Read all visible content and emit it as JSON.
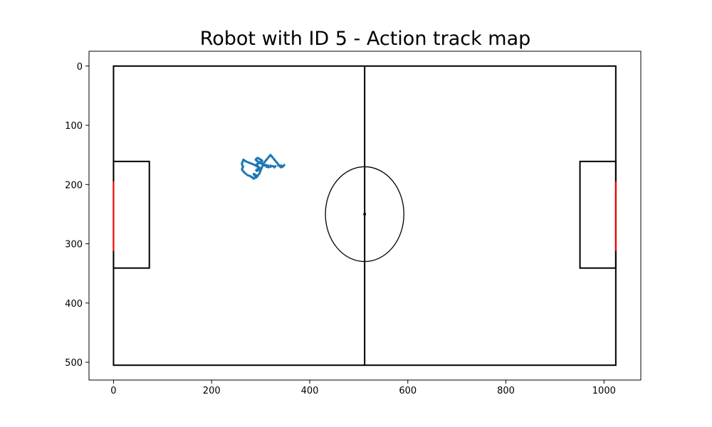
{
  "chart_data": {
    "type": "scatter",
    "title": "Robot with ID 5 - Action track map",
    "xlabel": "",
    "ylabel": "",
    "xlim": [
      -50,
      1075
    ],
    "ylim": [
      530,
      -25
    ],
    "y_inverted": true,
    "grid": false,
    "x_ticks": [
      0,
      200,
      400,
      600,
      800,
      1000
    ],
    "y_ticks": [
      0,
      100,
      200,
      300,
      400,
      500
    ],
    "colors": {
      "track": "#1f77b4",
      "field_lines": "#000000",
      "goal": "#ff0000"
    },
    "field": {
      "outline": [
        0,
        0,
        1024,
        505
      ],
      "center_line_x": 512,
      "center_circle": {
        "cx": 512,
        "cy": 250,
        "rx": 80,
        "ry": 80
      },
      "center_spot": [
        512,
        250
      ],
      "left_penalty_box": [
        0,
        161,
        73,
        341
      ],
      "right_penalty_box": [
        951,
        161,
        1024,
        341
      ],
      "left_goal": [
        0,
        195,
        0,
        312
      ],
      "right_goal": [
        1024,
        195,
        1024,
        312
      ]
    },
    "series": [
      {
        "x": [
          348,
          342,
          336,
          330,
          325,
          320,
          315,
          311,
          307,
          303,
          300,
          298,
          296,
          294,
          292,
          291,
          290,
          291,
          292,
          294,
          296,
          298,
          300,
          302,
          303,
          302,
          300,
          298,
          296,
          294,
          292,
          291,
          292,
          294,
          295,
          296,
          297,
          296,
          294,
          292,
          291,
          292,
          294,
          296,
          298,
          300,
          298,
          296,
          294,
          292,
          290,
          288,
          285,
          282,
          279,
          276,
          273,
          270,
          268,
          266,
          265,
          264,
          263,
          262,
          262,
          263,
          264,
          263,
          262,
          263,
          265,
          267,
          270,
          273,
          276,
          279,
          281,
          283,
          284,
          286,
          288,
          290,
          292,
          293,
          292,
          290,
          288,
          286,
          287,
          289,
          291,
          293,
          295,
          297,
          298,
          299,
          300,
          301,
          302,
          303,
          304,
          305,
          306,
          308,
          310,
          312,
          314,
          316,
          318,
          320,
          322,
          324,
          326,
          328,
          330,
          332,
          334,
          336,
          338,
          340,
          342,
          344,
          346,
          308,
          312,
          316,
          320,
          324,
          328
        ],
        "y": [
          167,
          168,
          168,
          169,
          169,
          168,
          168,
          167,
          166,
          165,
          164,
          163,
          162,
          161,
          160,
          159,
          158,
          157,
          156,
          155,
          156,
          157,
          158,
          159,
          160,
          161,
          162,
          163,
          164,
          165,
          166,
          167,
          168,
          169,
          170,
          171,
          172,
          173,
          174,
          175,
          176,
          177,
          176,
          175,
          174,
          173,
          172,
          171,
          170,
          169,
          168,
          167,
          166,
          165,
          164,
          163,
          162,
          161,
          160,
          159,
          158,
          160,
          162,
          164,
          166,
          168,
          170,
          172,
          174,
          176,
          178,
          180,
          182,
          184,
          185,
          186,
          187,
          188,
          189,
          190,
          189,
          188,
          187,
          186,
          185,
          184,
          183,
          182,
          184,
          186,
          188,
          186,
          184,
          182,
          180,
          178,
          176,
          174,
          172,
          170,
          168,
          166,
          164,
          162,
          160,
          158,
          156,
          154,
          152,
          150,
          152,
          154,
          156,
          158,
          160,
          162,
          164,
          166,
          168,
          170,
          171,
          170,
          169,
          168,
          170,
          171,
          170,
          169,
          171
        ]
      }
    ]
  }
}
